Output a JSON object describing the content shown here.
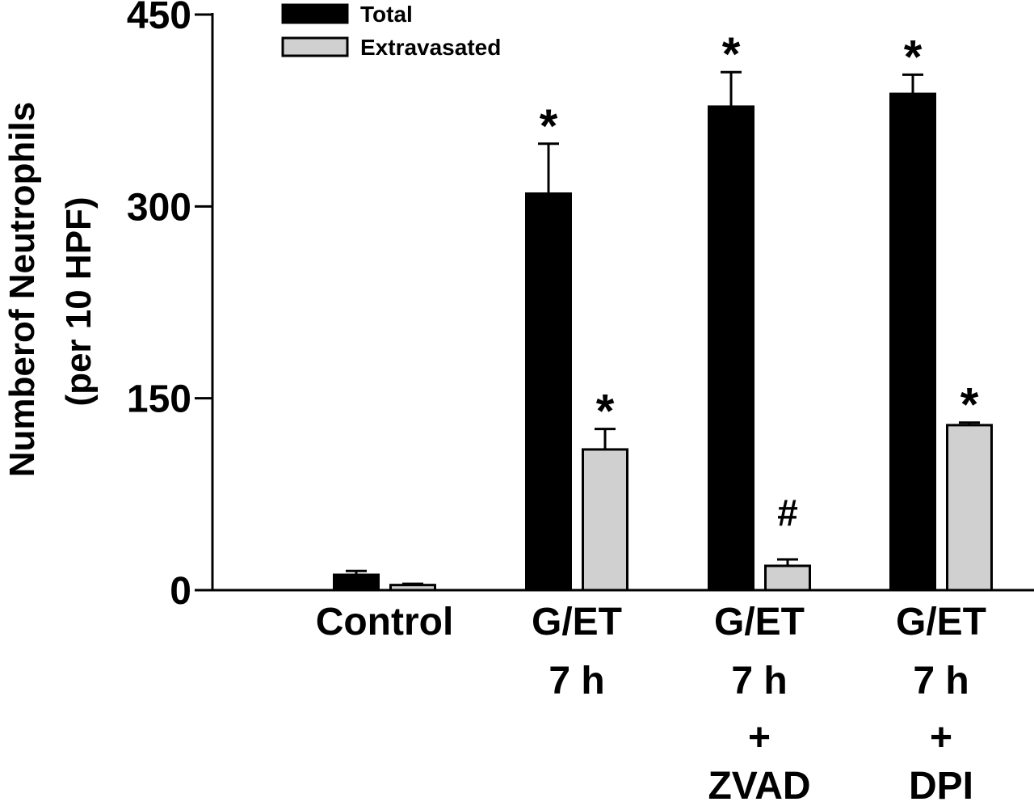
{
  "chart_data": {
    "type": "bar",
    "ylabel": "Numberof Neutrophils",
    "ylabel_line2": "(per 10 HPF)",
    "ylim": [
      0,
      450
    ],
    "yticks": [
      "0",
      "150",
      "300",
      "450"
    ],
    "categories": [
      [
        "Control"
      ],
      [
        "G/ET",
        "7 h"
      ],
      [
        "G/ET",
        "7 h",
        "+",
        "ZVAD"
      ],
      [
        "G/ET",
        "7 h",
        "+",
        "DPI"
      ]
    ],
    "series": [
      {
        "name": "Total",
        "color": "#000000",
        "values": [
          12,
          310,
          378,
          388
        ],
        "errors": [
          3,
          39,
          27,
          15
        ],
        "marks": [
          "",
          "*",
          "*",
          "*"
        ]
      },
      {
        "name": "Extravasated",
        "color": "#d0d0d0",
        "values": [
          4,
          110,
          19,
          129
        ],
        "errors": [
          1,
          16,
          5,
          2
        ],
        "marks": [
          "",
          "*",
          "#",
          "*"
        ]
      }
    ],
    "legend_position": "top-left",
    "grid": false
  }
}
